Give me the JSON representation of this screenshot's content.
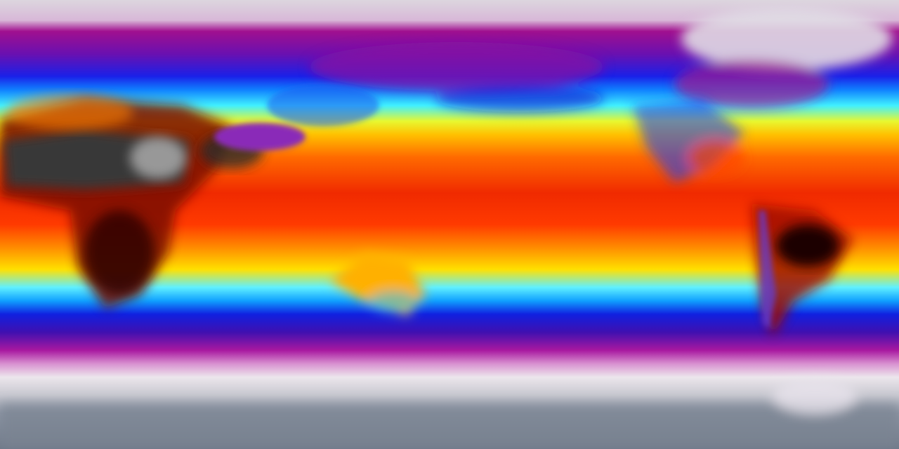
{
  "map": {
    "type": "global-temperature-field",
    "projection": "equirectangular",
    "colormap": [
      "#e8e0ea",
      "#b0189c",
      "#3010c8",
      "#0a40ff",
      "#30e8ff",
      "#f8f020",
      "#ff9a00",
      "#f02000",
      "#600000",
      "#303030",
      "#c8c8c8"
    ],
    "land_colors": {
      "sahara": "#3a3a3a",
      "tibet": "#8a2cb8",
      "amazon": "#1a0000",
      "australia": "#ffb000",
      "antarctica": "#8a93a3",
      "greenland": "#d8d4dc"
    }
  }
}
